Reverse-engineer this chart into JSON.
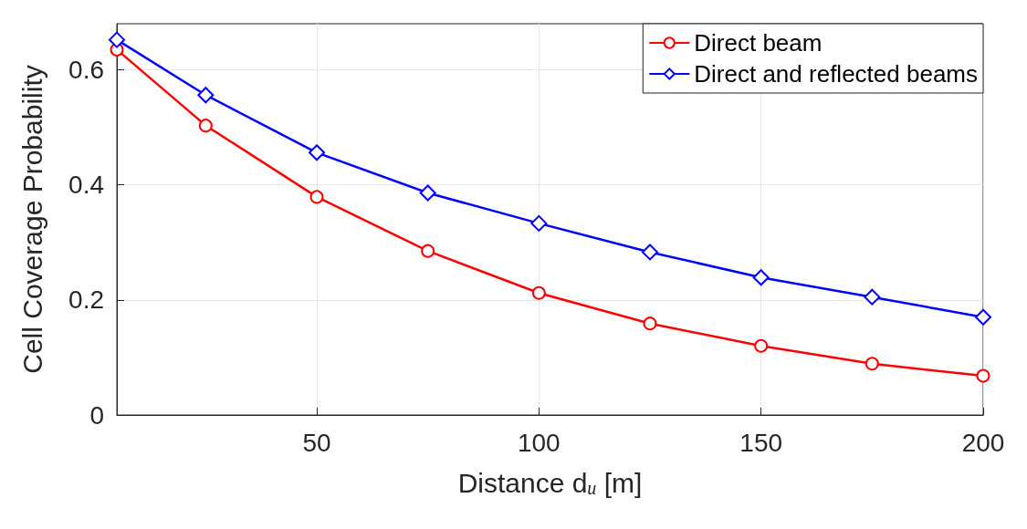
{
  "chart_data": {
    "type": "line",
    "xlabel": "Distance d$_{u}$ [m]",
    "ylabel": "Cell Coverage Probability",
    "x": [
      5,
      25,
      50,
      75,
      100,
      125,
      150,
      175,
      200
    ],
    "series": [
      {
        "name": "Direct beam",
        "color": "#ff0000",
        "marker": "circle",
        "values": [
          0.635,
          0.503,
          0.379,
          0.285,
          0.212,
          0.159,
          0.12,
          0.089,
          0.068
        ]
      },
      {
        "name": "Direct and reflected beams",
        "color": "#0000ff",
        "marker": "diamond",
        "values": [
          0.652,
          0.556,
          0.456,
          0.386,
          0.333,
          0.283,
          0.239,
          0.205,
          0.17
        ]
      }
    ],
    "xlim": [
      5,
      200
    ],
    "xticks": [
      50,
      100,
      150,
      200
    ],
    "ylim": [
      0,
      0.68
    ],
    "yticks": [
      0,
      0.2,
      0.4,
      0.6
    ],
    "grid": true,
    "legend": "top right",
    "line_style": "solid"
  }
}
